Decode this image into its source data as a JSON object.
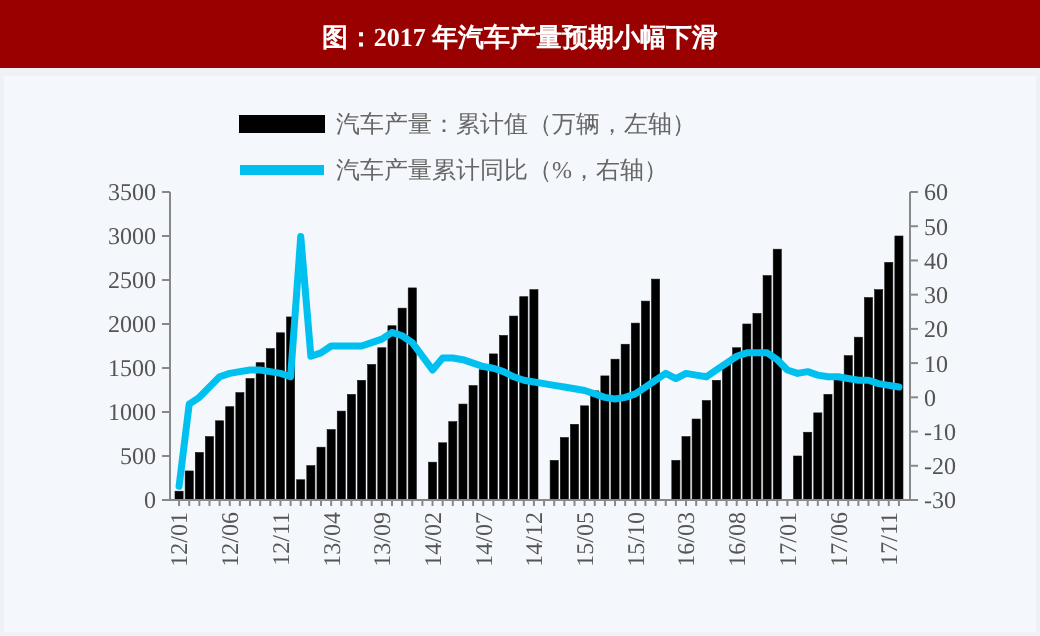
{
  "chart_data": {
    "type": "bar",
    "title": "图：2017 年汽车产量预期小幅下滑",
    "categories": [
      "12/01",
      null,
      null,
      null,
      null,
      "12/06",
      null,
      null,
      null,
      null,
      "12/11",
      null,
      null,
      null,
      null,
      "13/04",
      null,
      null,
      null,
      null,
      "13/09",
      null,
      null,
      null,
      null,
      "14/02",
      null,
      null,
      null,
      null,
      "14/07",
      null,
      null,
      null,
      null,
      "14/12",
      null,
      null,
      null,
      null,
      "15/05",
      null,
      null,
      null,
      null,
      "15/10",
      null,
      null,
      null,
      null,
      "16/03",
      null,
      null,
      null,
      null,
      "16/08",
      null,
      null,
      null,
      null,
      "17/01",
      null,
      null,
      null,
      null,
      "17/06",
      null,
      null,
      null,
      null,
      "17/11",
      null
    ],
    "series": [
      {
        "name": "汽车产量：累计值（万辆，左轴）",
        "color": "#000000",
        "values": [
          100,
          330,
          540,
          720,
          900,
          1060,
          1220,
          1380,
          1560,
          1720,
          1900,
          2080,
          230,
          390,
          600,
          800,
          1010,
          1200,
          1360,
          1540,
          1730,
          1980,
          2180,
          2410,
          null,
          430,
          650,
          890,
          1090,
          1300,
          1480,
          1660,
          1870,
          2090,
          2310,
          2390,
          null,
          450,
          710,
          860,
          1070,
          1240,
          1410,
          1600,
          1770,
          2010,
          2260,
          2510,
          null,
          450,
          720,
          920,
          1130,
          1360,
          1560,
          1730,
          2000,
          2120,
          2550,
          2850,
          null,
          500,
          770,
          990,
          1200,
          1420,
          1640,
          1850,
          2300,
          2390,
          2700,
          3000
        ]
      },
      {
        "name": "汽车产量累计同比（%，右轴）",
        "type": "line",
        "axis": "y2",
        "color": "#00c0f0",
        "values": [
          -26,
          -2,
          0,
          3,
          6,
          7,
          7.5,
          8,
          8,
          7.5,
          7,
          6,
          47,
          12,
          13,
          15,
          15,
          15,
          15,
          16,
          17,
          19,
          18,
          16,
          12,
          8,
          11.5,
          11.5,
          11,
          10,
          9,
          8.5,
          7.5,
          6,
          5,
          4.5,
          4,
          3.5,
          3,
          2.5,
          2,
          1,
          0,
          -0.5,
          0,
          1,
          3,
          5,
          7,
          5.5,
          7,
          6.5,
          6,
          8,
          10,
          12,
          13,
          13,
          13,
          11,
          8,
          7,
          7.5,
          6.5,
          6,
          6,
          5.5,
          5,
          5,
          4,
          3.5,
          3
        ]
      }
    ],
    "ylim": [
      0,
      3500
    ],
    "yticks": [
      0,
      500,
      1000,
      1500,
      2000,
      2500,
      3000,
      3500
    ],
    "y2lim": [
      -30,
      60
    ],
    "y2ticks": [
      -30,
      -20,
      -10,
      0,
      10,
      20,
      30,
      40,
      50,
      60
    ],
    "legend": "top left",
    "grid": false,
    "line_style": "solid",
    "marker": "none"
  }
}
